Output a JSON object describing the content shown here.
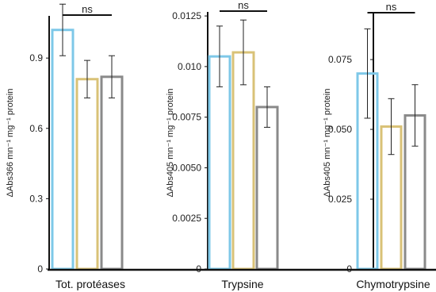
{
  "colors": {
    "series_1": "#7ec8e8",
    "series_2": "#d9c277",
    "series_3": "#8a8a8a",
    "axis": "#111111",
    "error_bar": "#222222"
  },
  "chart_data": [
    {
      "type": "bar",
      "xlabel": "Tot. protéases",
      "ylabel": "ΔAbs366 mn⁻¹ mg⁻¹ protein",
      "ylim": [
        0,
        1.08
      ],
      "yticks": [
        0,
        0.3,
        0.6,
        0.9
      ],
      "ytick_labels": [
        "0",
        "0.3",
        "0.6",
        "0.9"
      ],
      "values": [
        1.02,
        0.81,
        0.82
      ],
      "errors": [
        0.11,
        0.08,
        0.09
      ],
      "significance": "ns"
    },
    {
      "type": "bar",
      "xlabel": "Trypsine",
      "ylabel": "ΔAbs405 mn⁻¹ mg⁻¹ protein",
      "ylim": [
        0,
        0.0127
      ],
      "yticks": [
        0,
        0.0025,
        0.005,
        0.0075,
        0.01,
        0.0125
      ],
      "ytick_labels": [
        "0",
        "0.0025",
        "0.0050",
        "0.0075",
        "0.010",
        "0.0125"
      ],
      "values": [
        0.0105,
        0.0107,
        0.008
      ],
      "errors": [
        0.0015,
        0.0016,
        0.001
      ],
      "significance": "ns"
    },
    {
      "type": "bar",
      "xlabel": "Chymotrypsine",
      "ylabel": "ΔAbs405 mn⁻¹ mg⁻¹ protein",
      "ylim": [
        0,
        0.0915
      ],
      "yticks": [
        0,
        0.025,
        0.05,
        0.075
      ],
      "ytick_labels": [
        "0",
        "0.025",
        "0.050",
        "0.075"
      ],
      "values": [
        0.07,
        0.051,
        0.055
      ],
      "errors": [
        0.016,
        0.01,
        0.011
      ],
      "significance": "ns"
    }
  ]
}
